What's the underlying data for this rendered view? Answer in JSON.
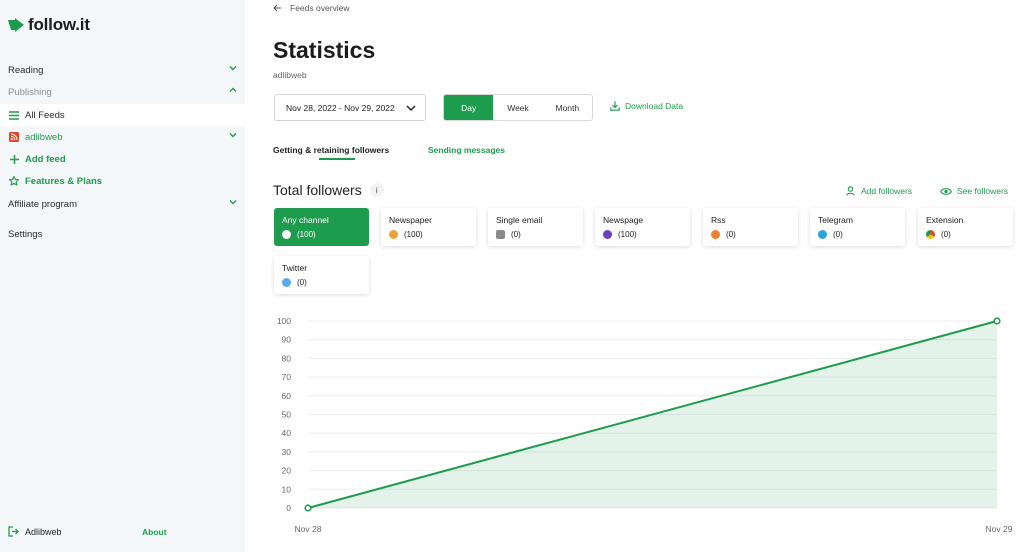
{
  "sidebar": {
    "logo_text": "follow.it",
    "items": [
      {
        "label": "Reading"
      },
      {
        "label": "Publishing"
      },
      {
        "label": "All Feeds"
      },
      {
        "label": "adlibweb"
      },
      {
        "label": "Add feed"
      },
      {
        "label": "Features & Plans"
      },
      {
        "label": "Affiliate program"
      },
      {
        "label": "Settings"
      }
    ],
    "footer": {
      "user": "Adlibweb",
      "about": "About"
    }
  },
  "main": {
    "back_label": "Feeds overview",
    "title": "Statistics",
    "subtitle": "adlibweb",
    "date_range": "Nov 28, 2022 - Nov 29, 2022",
    "periods": [
      "Day",
      "Week",
      "Month"
    ],
    "download_label": "Download Data",
    "tabs": [
      "Getting & retaining followers",
      "Sending messages"
    ],
    "section_title": "Total followers",
    "info_label": "i",
    "add_followers_label": "Add followers",
    "see_followers_label": "See followers",
    "channels": [
      {
        "name": "Any channel",
        "count": "(100)",
        "icon": "any-channel-icon",
        "color": "#ffffff"
      },
      {
        "name": "Newspaper",
        "count": "(100)",
        "icon": "newspaper-icon",
        "color": "#e8a33b"
      },
      {
        "name": "Single email",
        "count": "(0)",
        "icon": "single-email-icon",
        "color": "#8a8a8a"
      },
      {
        "name": "Newspage",
        "count": "(100)",
        "icon": "newspage-icon",
        "color": "#6b3fbf"
      },
      {
        "name": "Rss",
        "count": "(0)",
        "icon": "rss-icon",
        "color": "#f07f2a"
      },
      {
        "name": "Telegram",
        "count": "(0)",
        "icon": "telegram-icon",
        "color": "#2aa3da"
      },
      {
        "name": "Extension",
        "count": "(0)",
        "icon": "chrome-icon",
        "color": "#e54335"
      },
      {
        "name": "Twitter",
        "count": "(0)",
        "icon": "twitter-icon",
        "color": "#55acee"
      }
    ]
  },
  "colors": {
    "accent": "#1e9c4d",
    "sidebar_bg": "#f4f7fa"
  },
  "chart_data": {
    "type": "area",
    "x": [
      "Nov 28",
      "Nov 29"
    ],
    "series": [
      {
        "values": [
          0,
          100
        ]
      }
    ],
    "ylim": [
      0,
      100
    ],
    "yticks": [
      0,
      10,
      20,
      30,
      40,
      50,
      60,
      70,
      80,
      90,
      100
    ],
    "grid": true
  }
}
